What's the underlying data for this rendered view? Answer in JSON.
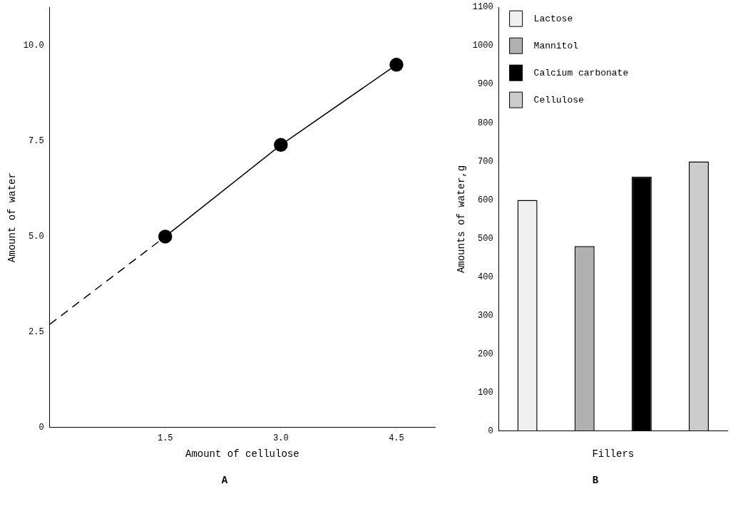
{
  "chart_data": [
    {
      "type": "line",
      "xlabel": "Amount of cellulose",
      "ylabel": "Amount of water",
      "annotations": [
        "A"
      ],
      "xlim": [
        0,
        5
      ],
      "ylim": [
        0,
        11
      ],
      "xticks": [
        1.5,
        {
          "value": 3,
          "label": "3.0"
        },
        4.5
      ],
      "yticks": [
        0,
        2.5,
        {
          "value": 5,
          "label": "5.0"
        },
        7.5,
        {
          "value": 10,
          "label": "10.0"
        }
      ],
      "grid": false,
      "legend": false,
      "series": [
        {
          "color": "#000000",
          "x": [
            1.5,
            3.0,
            4.5
          ],
          "values": [
            5.0,
            7.4,
            9.5
          ],
          "marker": "circle",
          "line_style": "solid"
        },
        {
          "color": "#000000",
          "x": [
            0,
            1.5
          ],
          "values": [
            2.7,
            5.0
          ],
          "marker": "none",
          "line_style": "dashed"
        }
      ]
    },
    {
      "type": "bar",
      "xlabel": "Fillers",
      "ylabel": "Amounts of water,g",
      "annotations": [
        "B"
      ],
      "categories": [
        null
      ],
      "ylim": [
        0,
        1100
      ],
      "yticks": [
        0,
        100,
        200,
        300,
        400,
        500,
        600,
        700,
        800,
        900,
        1000,
        1100
      ],
      "grid": false,
      "legend": "top left",
      "series": [
        {
          "name": "Lactose",
          "color": "#f0f0f0",
          "values": [
            600
          ]
        },
        {
          "name": "Mannitol",
          "color": "#b0b0b0",
          "values": [
            480
          ]
        },
        {
          "name": "Calcium carbonate",
          "color": "#000000",
          "values": [
            660
          ]
        },
        {
          "name": "Cellulose",
          "color": "#cccccc",
          "values": [
            700
          ]
        }
      ]
    }
  ]
}
